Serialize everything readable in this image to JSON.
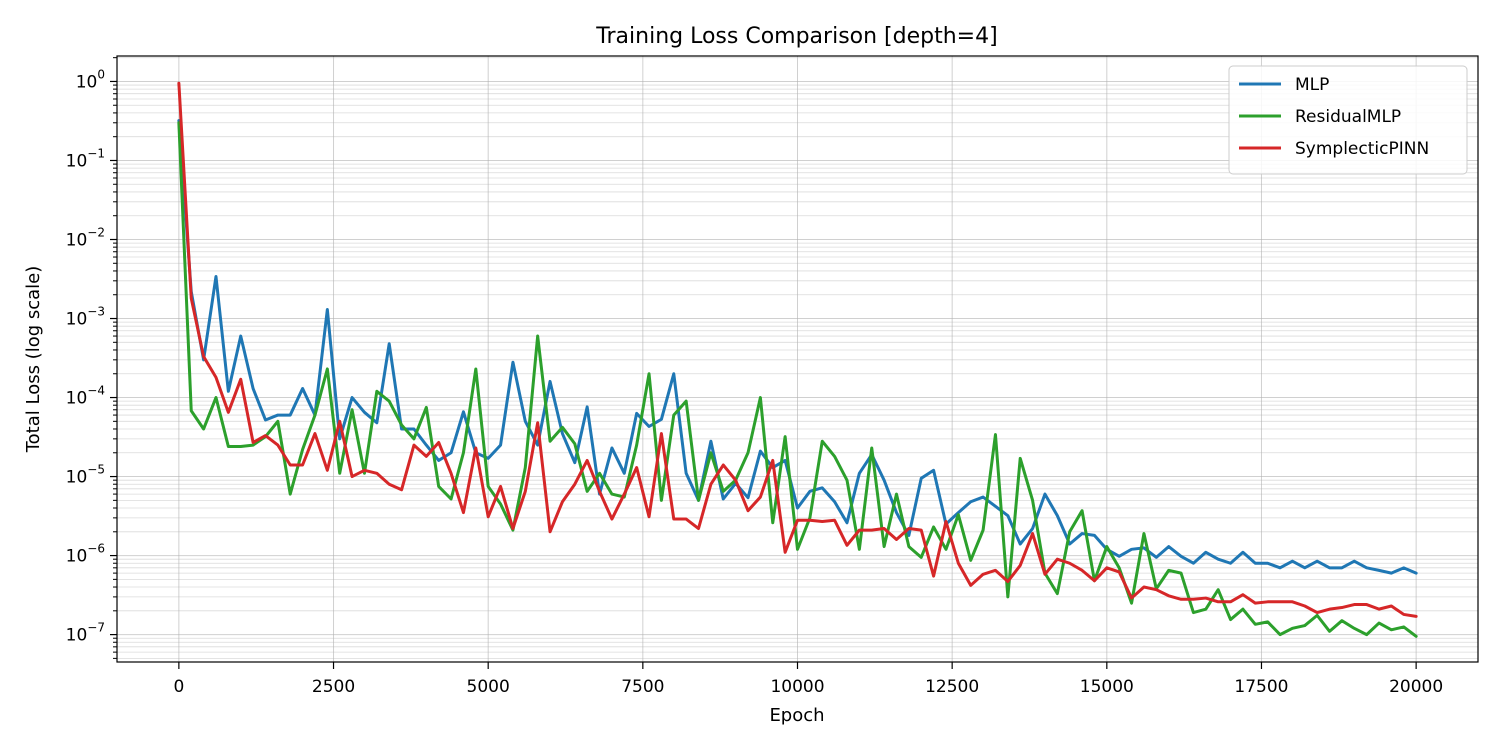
{
  "chart_data": {
    "type": "line",
    "title": "Training Loss Comparison  [depth=4]",
    "xlabel": "Epoch",
    "ylabel": "Total Loss (log scale)",
    "xlim": [
      -1000,
      21000
    ],
    "ylim": [
      4.5e-08,
      2.1
    ],
    "yscale": "log",
    "grid": true,
    "legend_position": "top-right",
    "x_ticks": [
      0,
      2500,
      5000,
      7500,
      10000,
      12500,
      15000,
      17500,
      20000
    ],
    "x_tick_labels": [
      "0",
      "2500",
      "5000",
      "7500",
      "10000",
      "12500",
      "15000",
      "17500",
      "20000"
    ],
    "y_ticks": [
      1e-07,
      1e-06,
      1e-05,
      0.0001,
      0.001,
      0.01,
      0.1,
      1
    ],
    "y_tick_labels": [
      {
        "base": "10",
        "exp": "−7"
      },
      {
        "base": "10",
        "exp": "−6"
      },
      {
        "base": "10",
        "exp": "−5"
      },
      {
        "base": "10",
        "exp": "−4"
      },
      {
        "base": "10",
        "exp": "−3"
      },
      {
        "base": "10",
        "exp": "−2"
      },
      {
        "base": "10",
        "exp": "−1"
      },
      {
        "base": "10",
        "exp": "0"
      }
    ],
    "x": [
      0,
      200,
      400,
      600,
      800,
      1000,
      1200,
      1400,
      1600,
      1800,
      2000,
      2200,
      2400,
      2600,
      2800,
      3000,
      3200,
      3400,
      3600,
      3800,
      4000,
      4200,
      4400,
      4600,
      4800,
      5000,
      5200,
      5400,
      5600,
      5800,
      6000,
      6200,
      6400,
      6600,
      6800,
      7000,
      7200,
      7400,
      7600,
      7800,
      8000,
      8200,
      8400,
      8600,
      8800,
      9000,
      9200,
      9400,
      9600,
      9800,
      10000,
      10200,
      10400,
      10600,
      10800,
      11000,
      11200,
      11400,
      11600,
      11800,
      12000,
      12200,
      12400,
      12600,
      12800,
      13000,
      13200,
      13400,
      13600,
      13800,
      14000,
      14200,
      14400,
      14600,
      14800,
      15000,
      15200,
      15400,
      15600,
      15800,
      16000,
      16200,
      16400,
      16600,
      16800,
      17000,
      17200,
      17400,
      17600,
      17800,
      18000,
      18200,
      18400,
      18600,
      18800,
      19000,
      19200,
      19400,
      19600,
      19800,
      20000
    ],
    "series": [
      {
        "name": "MLP",
        "color": "#1f77b4",
        "values": [
          0.32,
          0.0022,
          0.0003,
          0.0034,
          0.00012,
          0.0006,
          0.00013,
          5.2e-05,
          6e-05,
          6e-05,
          0.00013,
          6e-05,
          0.0013,
          3e-05,
          0.0001,
          6.5e-05,
          4.8e-05,
          0.00048,
          4e-05,
          4e-05,
          2.5e-05,
          1.6e-05,
          2e-05,
          6.6e-05,
          2e-05,
          1.7e-05,
          2.5e-05,
          0.00028,
          5e-05,
          2.5e-05,
          0.00016,
          3.5e-05,
          1.5e-05,
          7.6e-05,
          6e-06,
          2.3e-05,
          1.1e-05,
          6.3e-05,
          4.3e-05,
          5.3e-05,
          0.0002,
          1.1e-05,
          5e-06,
          2.8e-05,
          5.2e-06,
          8.2e-06,
          5.4e-06,
          2.1e-05,
          1.3e-05,
          1.6e-05,
          4e-06,
          6.5e-06,
          7.2e-06,
          4.8e-06,
          2.6e-06,
          1.1e-05,
          1.9e-05,
          9e-06,
          3.5e-06,
          1.8e-06,
          9.5e-06,
          1.2e-05,
          2.5e-06,
          3.5e-06,
          4.8e-06,
          5.5e-06,
          4.2e-06,
          3.2e-06,
          1.4e-06,
          2.2e-06,
          6e-06,
          3.2e-06,
          1.4e-06,
          1.9e-06,
          1.8e-06,
          1.2e-06,
          9.8e-07,
          1.2e-06,
          1.25e-06,
          9.5e-07,
          1.3e-06,
          9.8e-07,
          8e-07,
          1.1e-06,
          9e-07,
          8e-07,
          1.1e-06,
          8e-07,
          8e-07,
          7e-07,
          8.5e-07,
          7e-07,
          8.5e-07,
          7e-07,
          7e-07,
          8.5e-07,
          7e-07,
          6.5e-07,
          6e-07,
          7e-07,
          6e-07
        ]
      },
      {
        "name": "ResidualMLP",
        "color": "#2ca02c",
        "values": [
          0.3,
          6.8e-05,
          4e-05,
          0.0001,
          2.4e-05,
          2.4e-05,
          2.5e-05,
          3.2e-05,
          5e-05,
          6e-06,
          2.2e-05,
          6e-05,
          0.00023,
          1.1e-05,
          7e-05,
          1.1e-05,
          0.00012,
          9e-05,
          4.5e-05,
          3e-05,
          7.5e-05,
          7.5e-06,
          5.2e-06,
          2e-05,
          0.00023,
          7.5e-06,
          4.5e-06,
          2.1e-06,
          1.3e-05,
          0.0006,
          2.8e-05,
          4.2e-05,
          2.6e-05,
          6.5e-06,
          1.1e-05,
          6e-06,
          5.5e-06,
          2.5e-05,
          0.0002,
          5e-06,
          6e-05,
          9e-05,
          5e-06,
          2e-05,
          6.5e-06,
          9e-06,
          2e-05,
          0.0001,
          2.6e-06,
          3.2e-05,
          1.2e-06,
          3e-06,
          2.8e-05,
          1.8e-05,
          9e-06,
          1.2e-06,
          2.3e-05,
          1.3e-06,
          6e-06,
          1.3e-06,
          9.5e-07,
          2.3e-06,
          1.2e-06,
          3.3e-06,
          8.7e-07,
          2.1e-06,
          3.4e-05,
          3e-07,
          1.7e-05,
          5e-06,
          6e-07,
          3.3e-07,
          2e-06,
          3.7e-06,
          4.8e-07,
          1.3e-06,
          7e-07,
          2.5e-07,
          1.9e-06,
          3.8e-07,
          6.5e-07,
          6e-07,
          1.9e-07,
          2.1e-07,
          3.7e-07,
          1.55e-07,
          2.1e-07,
          1.35e-07,
          1.45e-07,
          1e-07,
          1.2e-07,
          1.3e-07,
          1.75e-07,
          1.1e-07,
          1.5e-07,
          1.2e-07,
          1e-07,
          1.4e-07,
          1.15e-07,
          1.25e-07,
          9.5e-08
        ]
      },
      {
        "name": "SymplecticPINN",
        "color": "#d62728",
        "values": [
          0.95,
          0.0018,
          0.00033,
          0.00018,
          6.5e-05,
          0.00017,
          2.7e-05,
          3.3e-05,
          2.5e-05,
          1.4e-05,
          1.4e-05,
          3.5e-05,
          1.2e-05,
          5e-05,
          1e-05,
          1.2e-05,
          1.1e-05,
          8e-06,
          6.8e-06,
          2.5e-05,
          1.8e-05,
          2.7e-05,
          1.1e-05,
          3.5e-06,
          2.3e-05,
          3.1e-06,
          7.5e-06,
          2.2e-06,
          6.5e-06,
          4.8e-05,
          2e-06,
          4.8e-06,
          8e-06,
          1.6e-05,
          6.5e-06,
          2.9e-06,
          6e-06,
          1.3e-05,
          3.1e-06,
          3.5e-05,
          2.9e-06,
          2.9e-06,
          2.2e-06,
          8e-06,
          1.4e-05,
          9e-06,
          3.7e-06,
          5.5e-06,
          1.6e-05,
          1.1e-06,
          2.8e-06,
          2.8e-06,
          2.7e-06,
          2.8e-06,
          1.35e-06,
          2.1e-06,
          2.1e-06,
          2.2e-06,
          1.6e-06,
          2.2e-06,
          2.1e-06,
          5.5e-07,
          2.7e-06,
          8e-07,
          4.2e-07,
          5.8e-07,
          6.5e-07,
          4.7e-07,
          7.5e-07,
          1.9e-06,
          5.8e-07,
          9e-07,
          8e-07,
          6.5e-07,
          4.8e-07,
          7e-07,
          6.2e-07,
          2.9e-07,
          4e-07,
          3.7e-07,
          3.1e-07,
          2.8e-07,
          2.8e-07,
          2.9e-07,
          2.6e-07,
          2.6e-07,
          3.2e-07,
          2.5e-07,
          2.6e-07,
          2.6e-07,
          2.6e-07,
          2.3e-07,
          1.9e-07,
          2.1e-07,
          2.2e-07,
          2.4e-07,
          2.4e-07,
          2.1e-07,
          2.3e-07,
          1.8e-07,
          1.7e-07
        ]
      }
    ]
  }
}
